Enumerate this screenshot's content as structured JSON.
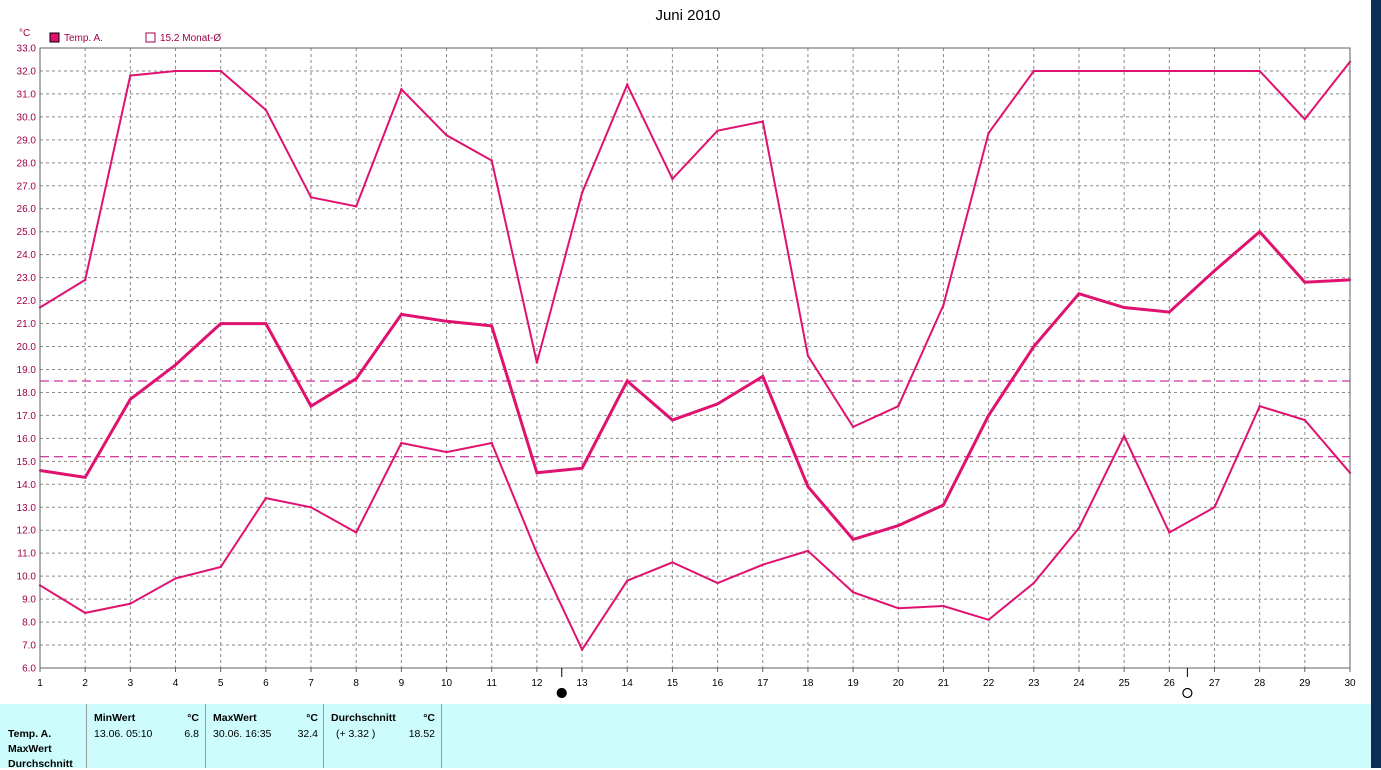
{
  "chart_data": {
    "type": "line",
    "title": "Juni 2010",
    "ylabel": "°C",
    "ylim": [
      6.0,
      33.0
    ],
    "yticks": [
      "6.0",
      "7.0",
      "8.0",
      "9.0",
      "10.0",
      "11.0",
      "12.0",
      "13.0",
      "14.0",
      "15.0",
      "16.0",
      "17.0",
      "18.0",
      "19.0",
      "20.0",
      "21.0",
      "22.0",
      "23.0",
      "24.0",
      "25.0",
      "26.0",
      "27.0",
      "28.0",
      "29.0",
      "30.0",
      "31.0",
      "32.0",
      "33.0"
    ],
    "x": [
      "1",
      "2",
      "3",
      "4",
      "5",
      "6",
      "7",
      "8",
      "9",
      "10",
      "11",
      "12",
      "13",
      "14",
      "15",
      "16",
      "17",
      "18",
      "19",
      "20",
      "21",
      "22",
      "23",
      "24",
      "25",
      "26",
      "27",
      "28",
      "29",
      "30"
    ],
    "grid": true,
    "legend": [
      {
        "label": "Temp. A.",
        "filled": true
      },
      {
        "label": "15.2 Monat-Ø",
        "filled": false
      }
    ],
    "series": [
      {
        "role": "max",
        "values": [
          21.7,
          22.9,
          31.8,
          32.0,
          32.0,
          30.3,
          26.5,
          26.1,
          31.2,
          29.2,
          28.1,
          19.3,
          26.7,
          31.4,
          27.3,
          29.4,
          29.8,
          19.6,
          16.5,
          17.4,
          21.8,
          29.3,
          32.0,
          32.0,
          32.0,
          32.0,
          32.0,
          32.0,
          29.9,
          32.4
        ]
      },
      {
        "role": "avg",
        "values": [
          14.6,
          14.3,
          17.7,
          19.2,
          21.0,
          21.0,
          17.4,
          18.6,
          21.4,
          21.1,
          20.9,
          14.5,
          14.7,
          18.5,
          16.8,
          17.5,
          18.7,
          13.9,
          11.6,
          12.2,
          13.1,
          17.0,
          20.0,
          22.3,
          21.7,
          21.5,
          23.3,
          25.0,
          22.8,
          22.9
        ]
      },
      {
        "role": "min",
        "values": [
          9.6,
          8.4,
          8.8,
          9.9,
          10.4,
          13.4,
          13.0,
          11.9,
          15.8,
          15.4,
          15.8,
          11.0,
          6.8,
          9.8,
          10.6,
          9.7,
          10.5,
          11.1,
          9.3,
          8.6,
          8.7,
          8.1,
          9.7,
          12.1,
          16.1,
          11.9,
          13.0,
          17.4,
          16.8,
          14.5
        ]
      }
    ],
    "reference_lines": [
      18.5,
      15.2
    ],
    "moon_markers": [
      {
        "type": "new-moon",
        "x": 12.55
      },
      {
        "type": "full-moon",
        "x": 26.4
      }
    ],
    "colors": {
      "series": "#e0126f",
      "reference": "#c00080",
      "grid": "#8a8a8a",
      "axis_text": "#a0004a"
    }
  },
  "stats": {
    "row_labels": [
      "Temp. A.",
      "MaxWert",
      "Durchschnitt"
    ],
    "min": {
      "header": "MinWert",
      "unit": "°C",
      "date": "13.06.  05:10",
      "value": "6.8"
    },
    "max": {
      "header": "MaxWert",
      "unit": "°C",
      "date": "30.06.  16:35",
      "value": "32.4"
    },
    "avg": {
      "header": "Durchschnitt",
      "unit": "°C",
      "delta": "(+ 3.32 )",
      "value": "18.52"
    }
  }
}
